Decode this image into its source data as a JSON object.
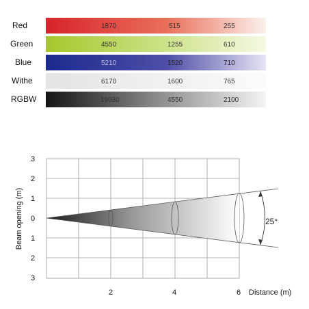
{
  "table": {
    "rows": [
      {
        "label": "Red",
        "values": [
          "1870",
          "515",
          "255"
        ],
        "color": "#d8232a"
      },
      {
        "label": "Green",
        "values": [
          "4550",
          "1255",
          "610"
        ],
        "color": "#a6c62b"
      },
      {
        "label": "Blue",
        "values": [
          "5210",
          "1520",
          "710"
        ],
        "color": "#1c2a8c"
      },
      {
        "label": "Withe",
        "values": [
          "6170",
          "1600",
          "765"
        ],
        "color": "#e6e6e6"
      },
      {
        "label": "RGBW",
        "values": [
          "19030",
          "4550",
          "2100"
        ],
        "color": "#1a1a1a"
      }
    ]
  },
  "beam": {
    "y_axis_label": "Beam opening (m)",
    "x_axis_label": "Distance (m)",
    "y_ticks": [
      "3",
      "2",
      "1",
      "0",
      "1",
      "2",
      "3"
    ],
    "x_ticks": [
      "2",
      "4",
      "6"
    ],
    "angle_label": "25°"
  }
}
